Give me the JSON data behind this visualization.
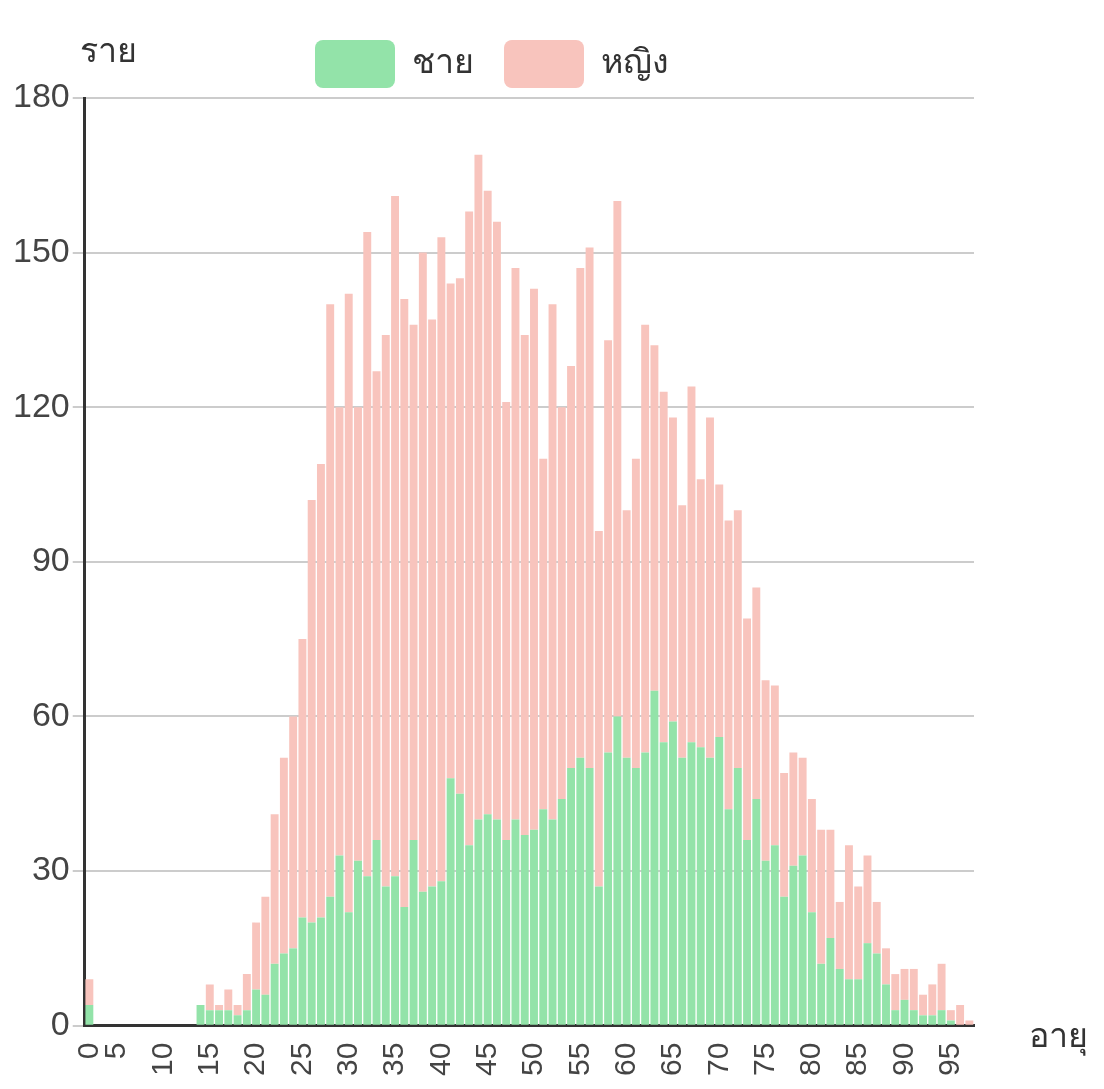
{
  "chart_data": {
    "type": "bar",
    "stacked": true,
    "xlabel": "อายุ",
    "ylabel": "ราย",
    "legend": "top",
    "grid": "y",
    "ylim": [
      0,
      180
    ],
    "yticks": [
      0,
      30,
      60,
      90,
      120,
      150,
      180
    ],
    "categories": [
      "0",
      null,
      null,
      "5",
      null,
      null,
      null,
      null,
      "10",
      null,
      null,
      null,
      null,
      "15",
      null,
      null,
      null,
      null,
      "20",
      null,
      null,
      null,
      null,
      "25",
      null,
      null,
      null,
      null,
      "30",
      null,
      null,
      null,
      null,
      "35",
      null,
      null,
      null,
      null,
      "40",
      null,
      null,
      null,
      null,
      "45",
      null,
      null,
      null,
      null,
      "50",
      null,
      null,
      null,
      null,
      "55",
      null,
      null,
      null,
      null,
      "60",
      null,
      null,
      null,
      null,
      "65",
      null,
      null,
      null,
      null,
      "70",
      null,
      null,
      null,
      null,
      "75",
      null,
      null,
      null,
      null,
      "80",
      null,
      null,
      null,
      null,
      "85",
      null,
      null,
      null,
      null,
      "90",
      null,
      null,
      null,
      null,
      "95",
      null,
      null
    ],
    "series": [
      {
        "name": "ชาย",
        "color": "#93e3a9",
        "values": [
          4,
          0,
          0,
          0,
          0,
          0,
          0,
          0,
          0,
          0,
          0,
          0,
          4,
          3,
          3,
          3,
          2,
          3,
          7,
          6,
          12,
          14,
          15,
          21,
          20,
          21,
          25,
          33,
          22,
          32,
          29,
          36,
          27,
          29,
          23,
          36,
          26,
          27,
          28,
          48,
          45,
          35,
          40,
          41,
          40,
          36,
          40,
          37,
          38,
          42,
          40,
          44,
          50,
          52,
          50,
          27,
          53,
          60,
          52,
          50,
          53,
          65,
          55,
          59,
          52,
          55,
          54,
          52,
          56,
          42,
          50,
          36,
          44,
          32,
          35,
          25,
          31,
          33,
          22,
          12,
          17,
          11,
          9,
          9,
          16,
          14,
          8,
          3,
          5,
          3,
          2,
          2,
          3,
          1,
          0,
          0
        ]
      },
      {
        "name": "หญิง",
        "color": "#f8c4bd",
        "values": [
          5,
          0,
          0,
          0,
          0,
          0,
          0,
          0,
          0,
          0,
          0,
          0,
          0,
          5,
          1,
          4,
          2,
          7,
          13,
          19,
          29,
          38,
          45,
          54,
          82,
          88,
          115,
          87,
          120,
          88,
          125,
          91,
          107,
          132,
          118,
          100,
          124,
          110,
          125,
          96,
          100,
          123,
          129,
          121,
          116,
          85,
          107,
          97,
          105,
          68,
          100,
          76,
          78,
          95,
          101,
          69,
          80,
          100,
          48,
          60,
          83,
          67,
          68,
          59,
          49,
          69,
          52,
          66,
          49,
          56,
          50,
          43,
          41,
          35,
          31,
          24,
          22,
          19,
          22,
          26,
          21,
          13,
          26,
          18,
          17,
          10,
          7,
          7,
          6,
          8,
          4,
          6,
          9,
          2,
          4,
          1
        ]
      }
    ]
  }
}
